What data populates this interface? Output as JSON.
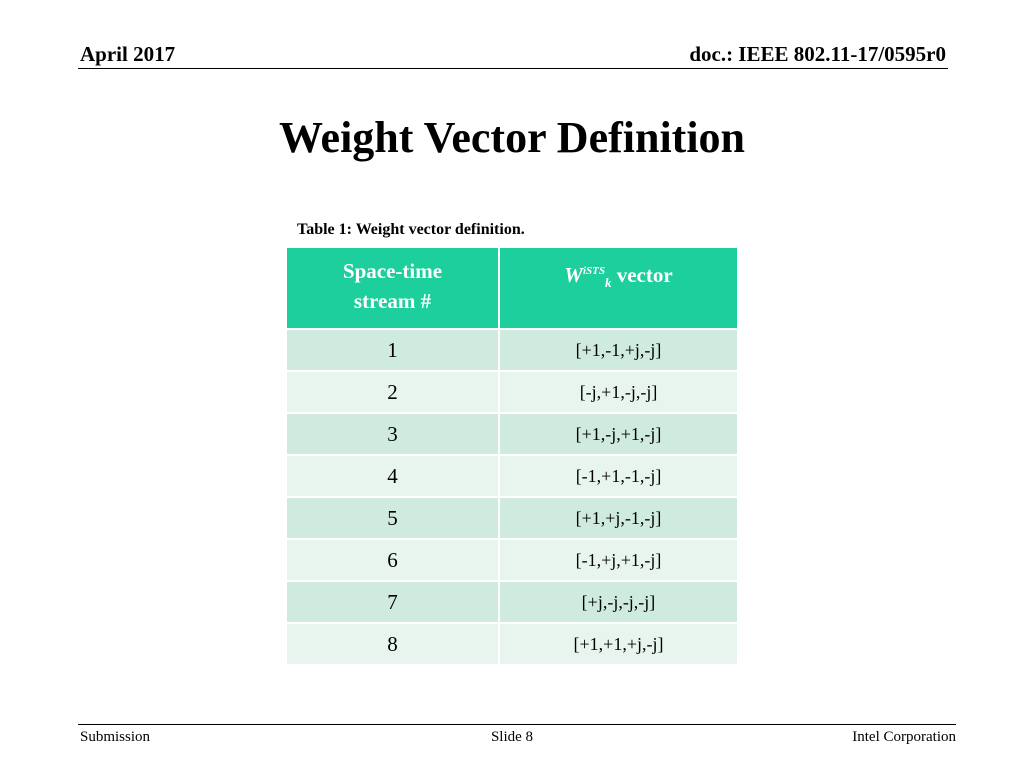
{
  "header": {
    "date": "April 2017",
    "doc": "doc.: IEEE 802.11-17/0595r0"
  },
  "title": "Weight Vector Definition",
  "table": {
    "caption": "Table 1: Weight vector definition.",
    "col1_header": "Space-time stream #",
    "col2_header": {
      "symbol": "W",
      "superscript": "iSTS",
      "subscript": "k",
      "suffix": " vector"
    },
    "rows": [
      {
        "stream": "1",
        "vector": "[+1,-1,+j,-j]"
      },
      {
        "stream": "2",
        "vector": "[-j,+1,-j,-j]"
      },
      {
        "stream": "3",
        "vector": "[+1,-j,+1,-j]"
      },
      {
        "stream": "4",
        "vector": "[-1,+1,-1,-j]"
      },
      {
        "stream": "5",
        "vector": "[+1,+j,-1,-j]"
      },
      {
        "stream": "6",
        "vector": "[-1,+j,+1,-j]"
      },
      {
        "stream": "7",
        "vector": "[+j,-j,-j,-j]"
      },
      {
        "stream": "8",
        "vector": "[+1,+1,+j,-j]"
      }
    ],
    "colors": {
      "header_bg": "#1ccf9c",
      "row_odd_bg": "#cfeade",
      "row_even_bg": "#e8f5ef"
    }
  },
  "footer": {
    "left": "Submission",
    "center": "Slide 8",
    "right": "Intel Corporation"
  }
}
